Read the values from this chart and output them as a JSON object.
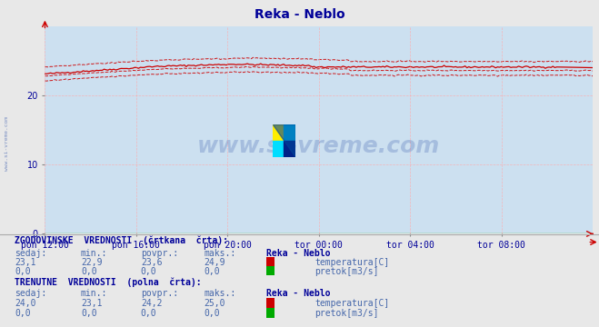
{
  "title": "Reka - Neblo",
  "title_color": "#000099",
  "plot_bg_color": "#cce0f0",
  "outer_bg_color": "#e8e8e8",
  "grid_color": "#ffaaaa",
  "x_labels": [
    "pon 12:00",
    "pon 16:00",
    "pon 20:00",
    "tor 00:00",
    "tor 04:00",
    "tor 08:00"
  ],
  "y_min": 0,
  "y_max": 30,
  "y_ticks": [
    0,
    10,
    20
  ],
  "n_points": 288,
  "temp_line_color": "#cc0000",
  "flow_line_color": "#00aa00",
  "watermark_text": "www.si-vreme.com",
  "watermark_color": "#3355aa",
  "watermark_alpha": 0.25,
  "left_label_color": "#3355aa",
  "text_color": "#000099",
  "table_header_color": "#000099",
  "table_value_color": "#4466aa",
  "bottom_bg_color": "#ffffff"
}
